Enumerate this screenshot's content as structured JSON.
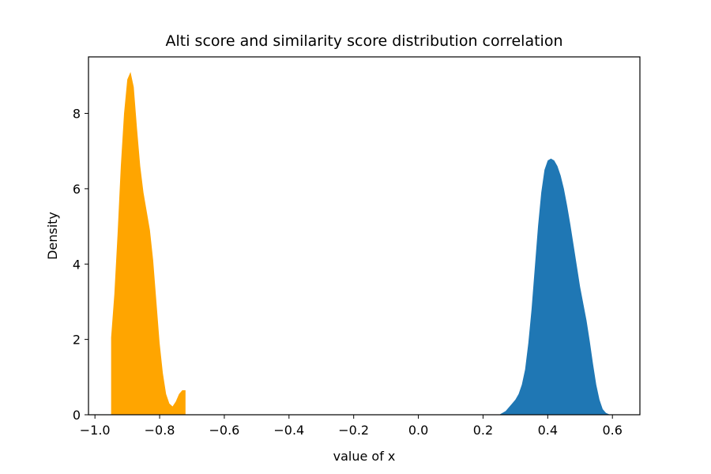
{
  "chart_data": {
    "type": "area",
    "title": "Alti score and similarity score distribution correlation",
    "xlabel": "value of x",
    "ylabel": "Density",
    "xlim": [
      -1.02,
      0.685
    ],
    "ylim": [
      0,
      9.5
    ],
    "grid": false,
    "xticks": [
      {
        "value": -1.0,
        "label": "−1.0"
      },
      {
        "value": -0.8,
        "label": "−0.8"
      },
      {
        "value": -0.6,
        "label": "−0.6"
      },
      {
        "value": -0.4,
        "label": "−0.4"
      },
      {
        "value": -0.2,
        "label": "−0.2"
      },
      {
        "value": 0.0,
        "label": "0.0"
      },
      {
        "value": 0.2,
        "label": "0.2"
      },
      {
        "value": 0.4,
        "label": "0.4"
      },
      {
        "value": 0.6,
        "label": "0.6"
      }
    ],
    "yticks": [
      {
        "value": 0,
        "label": "0"
      },
      {
        "value": 2,
        "label": "2"
      },
      {
        "value": 4,
        "label": "4"
      },
      {
        "value": 6,
        "label": "6"
      },
      {
        "value": 8,
        "label": "8"
      }
    ],
    "series": [
      {
        "color": "#ffa500",
        "x": [
          -0.95,
          -0.94,
          -0.93,
          -0.92,
          -0.91,
          -0.9,
          -0.89,
          -0.88,
          -0.87,
          -0.86,
          -0.85,
          -0.84,
          -0.83,
          -0.82,
          -0.81,
          -0.8,
          -0.79,
          -0.78,
          -0.77,
          -0.76,
          -0.75,
          -0.74,
          -0.73,
          -0.72
        ],
        "y": [
          2.05,
          3.2,
          4.8,
          6.6,
          8.0,
          8.9,
          9.1,
          8.7,
          7.6,
          6.6,
          5.9,
          5.4,
          4.9,
          4.1,
          3.0,
          1.9,
          1.1,
          0.55,
          0.3,
          0.22,
          0.35,
          0.55,
          0.65,
          0.65
        ]
      },
      {
        "color": "#1f77b4",
        "x": [
          0.25,
          0.27,
          0.29,
          0.3,
          0.31,
          0.32,
          0.33,
          0.34,
          0.35,
          0.36,
          0.37,
          0.38,
          0.39,
          0.4,
          0.41,
          0.42,
          0.43,
          0.44,
          0.45,
          0.46,
          0.47,
          0.48,
          0.49,
          0.5,
          0.51,
          0.52,
          0.53,
          0.54,
          0.55,
          0.56,
          0.57,
          0.58,
          0.59,
          0.6
        ],
        "y": [
          0.0,
          0.1,
          0.3,
          0.4,
          0.55,
          0.8,
          1.2,
          1.9,
          2.8,
          3.9,
          5.0,
          5.9,
          6.5,
          6.75,
          6.8,
          6.75,
          6.6,
          6.35,
          6.0,
          5.55,
          5.05,
          4.5,
          3.95,
          3.4,
          2.95,
          2.5,
          1.95,
          1.35,
          0.8,
          0.4,
          0.15,
          0.05,
          0.01,
          0.0
        ]
      }
    ]
  }
}
